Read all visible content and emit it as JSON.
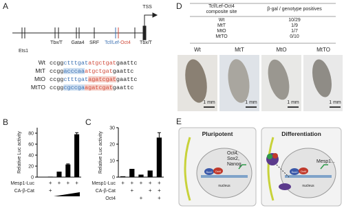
{
  "panel_a": {
    "panel_label": "A",
    "tss": "TSS",
    "elements": [
      "Ets1",
      "Tbx/T",
      "Gata4",
      "SRF",
      [
        "Tcf/Lef-",
        "Oct4"
      ],
      "Tbx/T"
    ],
    "sequences": [
      {
        "name": "Wt",
        "segments": [
          {
            "text": "ccgg",
            "color": "#222"
          },
          {
            "text": "ctttgat",
            "color": "#3a6fb0"
          },
          {
            "text": "atgctgat",
            "color": "#d04a3a"
          },
          {
            "text": "gaattc",
            "color": "#222"
          }
        ]
      },
      {
        "name": "MtT",
        "segments": [
          {
            "text": "ccgg",
            "color": "#222"
          },
          {
            "text": "acccaa",
            "color": "#3a6fb0",
            "highlight": "#cfe0f2"
          },
          {
            "text": "atgctgat",
            "color": "#d04a3a"
          },
          {
            "text": "gaattc",
            "color": "#222"
          }
        ]
      },
      {
        "name": "MtO",
        "segments": [
          {
            "text": "ccgg",
            "color": "#222"
          },
          {
            "text": "ctttgat",
            "color": "#3a6fb0"
          },
          {
            "text": "agatcgat",
            "color": "#d04a3a",
            "highlight": "#f6d3cc"
          },
          {
            "text": "gaattc",
            "color": "#222"
          }
        ]
      },
      {
        "name": "MtTO",
        "segments": [
          {
            "text": "ccgg",
            "color": "#222"
          },
          {
            "text": "cgccga",
            "color": "#3a6fb0",
            "highlight": "#cfe0f2"
          },
          {
            "text": "agatcgat",
            "color": "#d04a3a",
            "highlight": "#f6d3cc"
          },
          {
            "text": "gaattc",
            "color": "#222"
          }
        ]
      }
    ]
  },
  "chart_data": [
    {
      "type": "bar",
      "panel_label": "B",
      "y_label": "Relative Luc activity",
      "ylim": [
        0,
        90
      ],
      "yticks": [
        0,
        20,
        40,
        60,
        80
      ],
      "values": [
        0.3,
        0.8,
        10,
        23,
        78
      ],
      "errors": [
        null,
        null,
        null,
        1,
        3
      ],
      "color": "#000000",
      "conditions": [
        {
          "name": "Mesp1-Luc",
          "marks": [
            null,
            "+",
            "+",
            "+",
            "+"
          ]
        },
        {
          "name": "CA-β-Cat",
          "marks": [
            null,
            "+",
            null,
            null,
            null
          ]
        }
      ]
    },
    {
      "type": "bar",
      "panel_label": "C",
      "y_label": "Relative Luc activity",
      "ylim": [
        0,
        30
      ],
      "yticks": [
        0,
        10,
        20,
        30
      ],
      "values": [
        0.5,
        5,
        1.5,
        4,
        24
      ],
      "errors": [
        null,
        null,
        null,
        null,
        3
      ],
      "color": "#000000",
      "conditions": [
        {
          "name": "Mesp1-Luc",
          "marks": [
            "+",
            "+",
            "+",
            "+",
            "+"
          ]
        },
        {
          "name": "CA-β-Cat",
          "marks": [
            null,
            "+",
            null,
            "+",
            "+"
          ]
        },
        {
          "name": "Oct4",
          "marks": [
            null,
            null,
            "+",
            null,
            "+"
          ]
        }
      ]
    }
  ],
  "panel_d": {
    "panel_label": "D",
    "header": [
      [
        "Tcf/Lef-Oct4",
        "composite site"
      ],
      "β-gal / genotype positives"
    ],
    "rows": [
      [
        "Wt",
        "10/29"
      ],
      [
        "MtT",
        "1/9"
      ],
      [
        "MtO",
        "1/7"
      ],
      [
        "MtTO",
        "0/10"
      ]
    ],
    "embryos": [
      "Wt",
      "MtT",
      "MtO",
      "MtTO"
    ],
    "scale_label": "1 mm"
  },
  "panel_e": {
    "panel_label": "E",
    "boxes": [
      "Pluripotent",
      "Differentiation"
    ],
    "factors": [
      "Oct4,",
      "Sox2,",
      "Nanog"
    ],
    "complex": [
      "Sox2",
      "Oct4"
    ],
    "target": "Mesp1...",
    "nucleus": "nucleus"
  }
}
